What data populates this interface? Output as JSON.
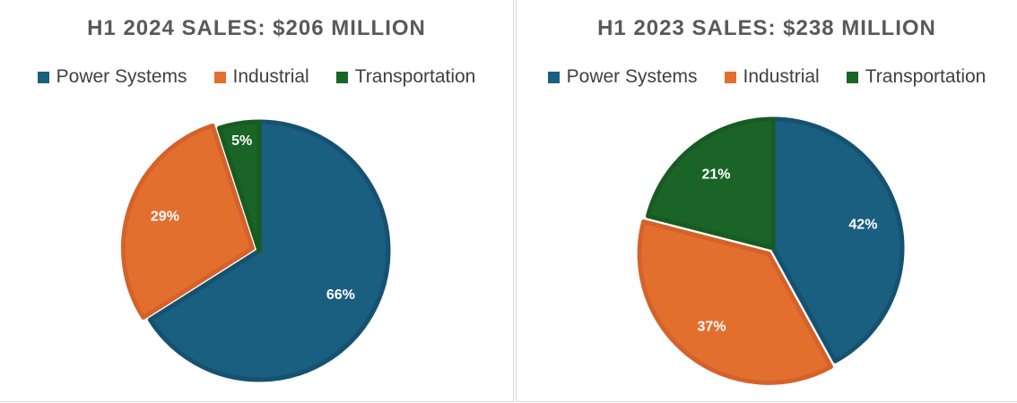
{
  "colors": {
    "power": "#1a5e80",
    "power_edge": "#155270",
    "industrial": "#e36f2f",
    "industrial_edge": "#d4622a",
    "transportation": "#1b6427",
    "transportation_edge": "#185b22"
  },
  "chart_data": [
    {
      "type": "pie",
      "title": "H1 2024 SALES: $206 MILLION",
      "legend_position": "top",
      "categories": [
        "Power Systems",
        "Industrial",
        "Transportation"
      ],
      "values": [
        66,
        29,
        5
      ],
      "labels": [
        "66%",
        "29%",
        "5%"
      ],
      "exploded": [
        "Industrial"
      ]
    },
    {
      "type": "pie",
      "title": "H1 2023 SALES: $238 MILLION",
      "legend_position": "top",
      "categories": [
        "Power Systems",
        "Industrial",
        "Transportation"
      ],
      "values": [
        42,
        37,
        21
      ],
      "labels": [
        "42%",
        "37%",
        "21%"
      ],
      "exploded": [
        "Industrial"
      ]
    }
  ]
}
